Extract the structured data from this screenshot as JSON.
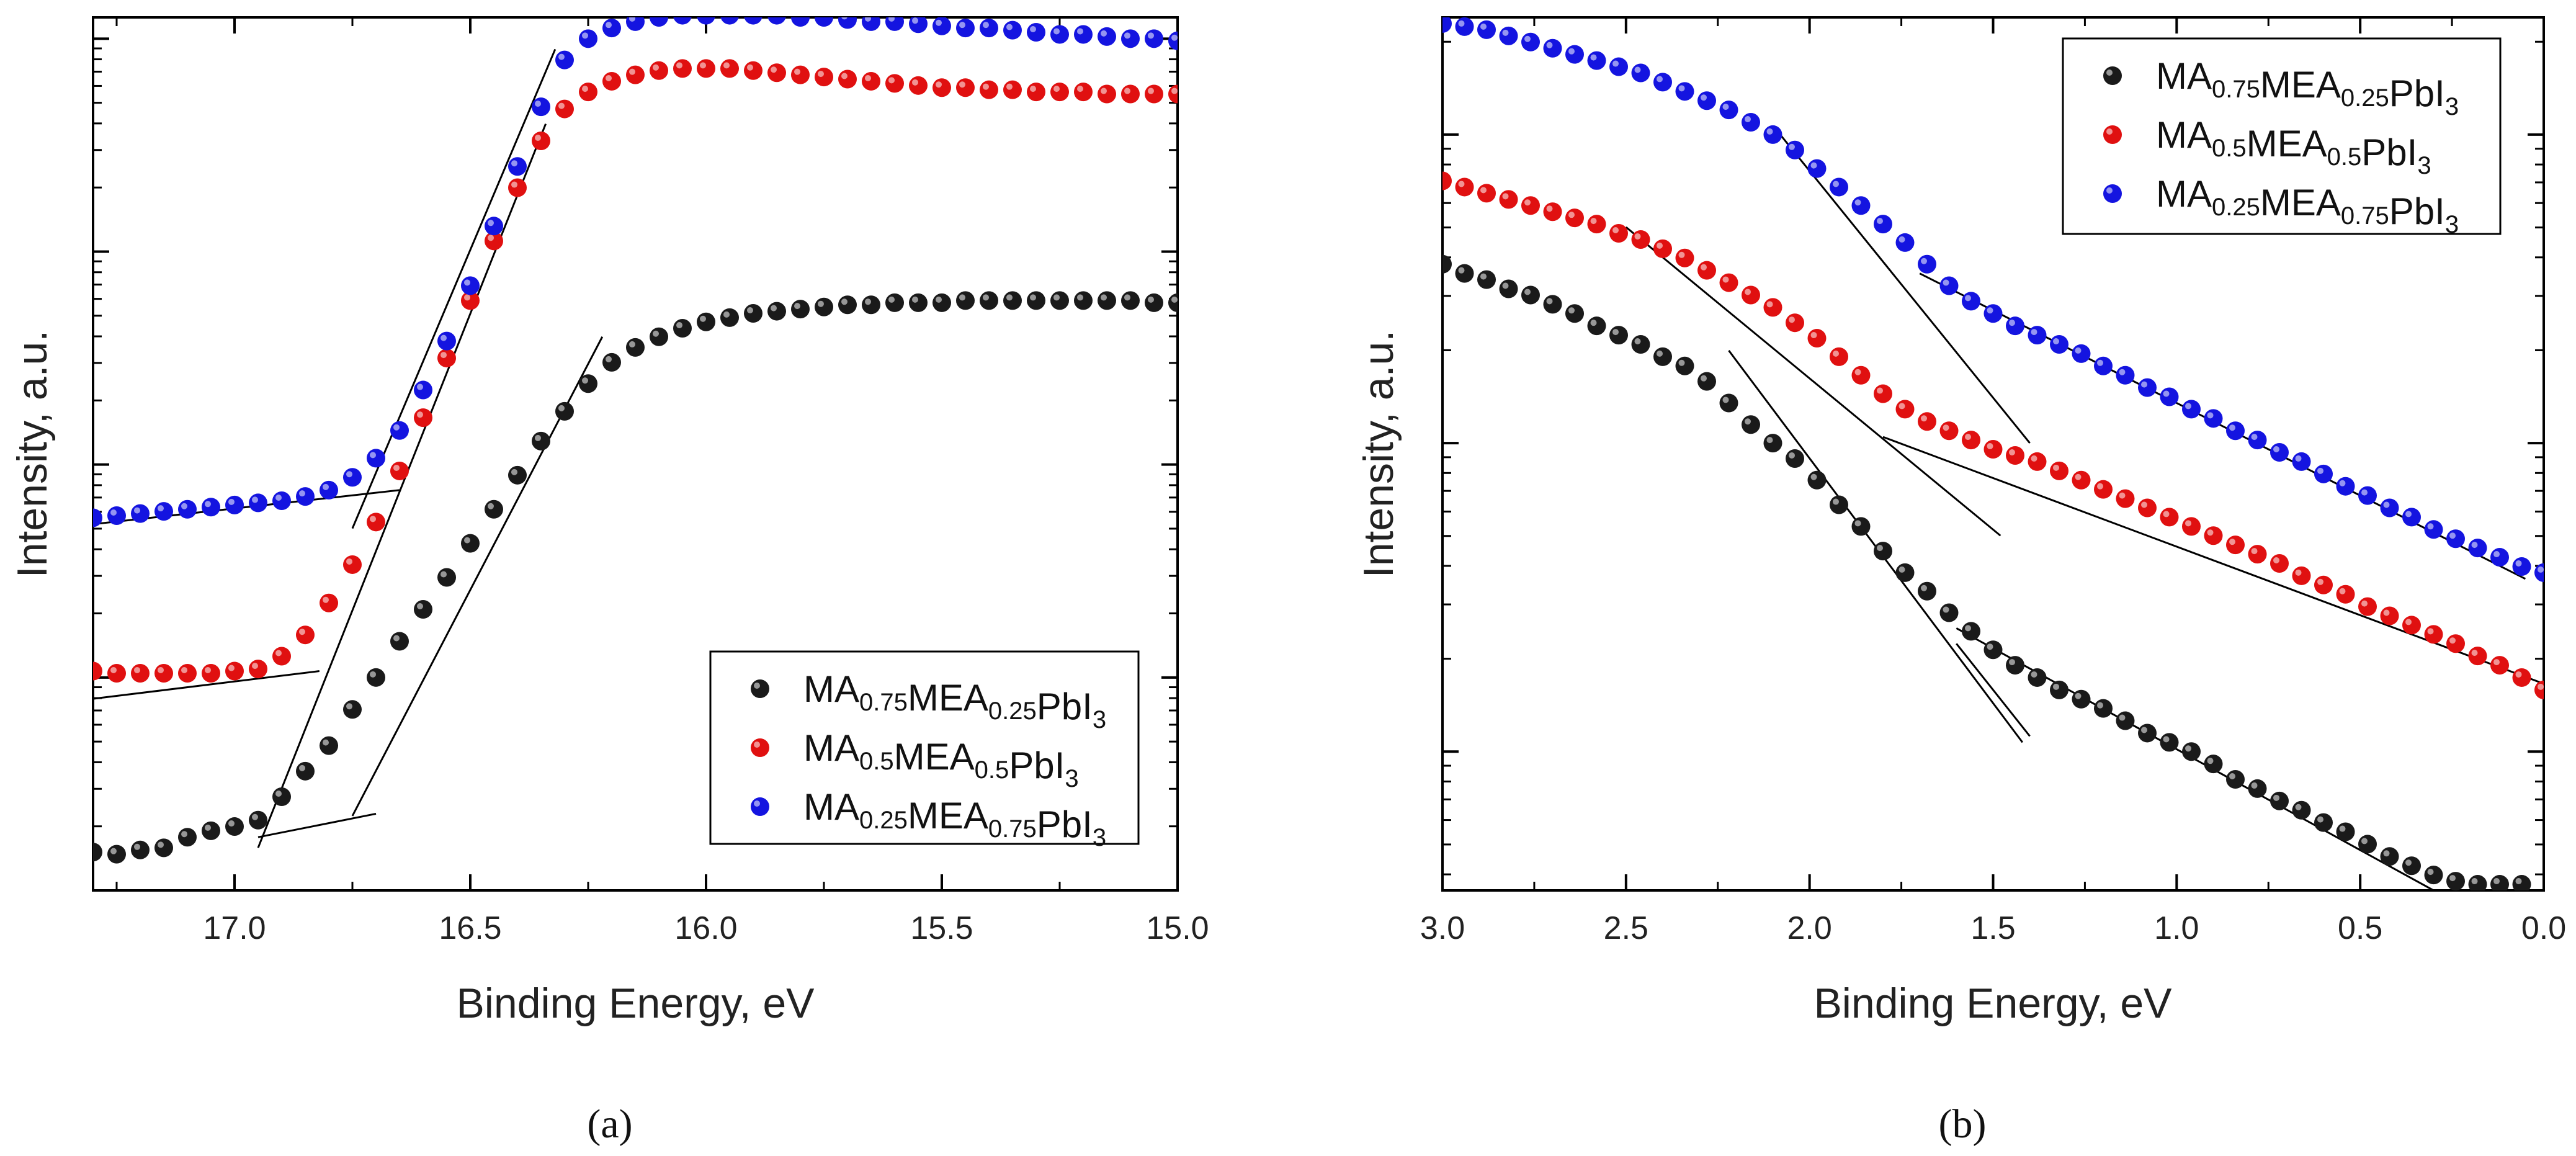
{
  "chart_data": [
    {
      "type": "scatter",
      "panel": "a",
      "panel_label": "(a)",
      "xlabel": "Binding Energy, eV",
      "ylabel": "Intensity, a.u.",
      "xlim": [
        17.3,
        15.0
      ],
      "x_ticks": [
        "17.0",
        "16.5",
        "16.0",
        "15.5",
        "15.0"
      ],
      "x_tick_values": [
        17.0,
        16.5,
        16.0,
        15.5,
        15.0
      ],
      "yscale": "log",
      "y_unit_note": "relative log intensity, decades (major ticks unlabeled)",
      "ylim": [
        0,
        4.1
      ],
      "y_major_ticks": [
        1,
        2,
        3,
        4
      ],
      "legend_position": "bottom-right",
      "series": [
        {
          "name": "MA0.75MEA0.25PbI3",
          "label_parts": [
            [
              "MA",
              ""
            ],
            [
              "0.75",
              "sub"
            ],
            [
              "MEA",
              ""
            ],
            [
              "0.25",
              "sub"
            ],
            [
              "PbI",
              ""
            ],
            [
              "3",
              "sub"
            ]
          ],
          "color": "#1a1a1a",
          "x": [
            17.3,
            17.25,
            17.2,
            17.15,
            17.1,
            17.05,
            17.0,
            16.95,
            16.9,
            16.85,
            16.8,
            16.75,
            16.7,
            16.65,
            16.6,
            16.55,
            16.5,
            16.45,
            16.4,
            16.35,
            16.3,
            16.25,
            16.2,
            16.15,
            16.1,
            16.05,
            16.0,
            15.95,
            15.9,
            15.85,
            15.8,
            15.75,
            15.7,
            15.65,
            15.6,
            15.55,
            15.5,
            15.45,
            15.4,
            15.35,
            15.3,
            15.25,
            15.2,
            15.15,
            15.1,
            15.05,
            15.0
          ],
          "y": [
            0.18,
            0.17,
            0.19,
            0.2,
            0.25,
            0.28,
            0.3,
            0.33,
            0.44,
            0.56,
            0.68,
            0.85,
            1.0,
            1.17,
            1.32,
            1.47,
            1.63,
            1.79,
            1.95,
            2.11,
            2.25,
            2.38,
            2.48,
            2.55,
            2.6,
            2.64,
            2.67,
            2.69,
            2.71,
            2.72,
            2.73,
            2.74,
            2.75,
            2.75,
            2.76,
            2.76,
            2.76,
            2.77,
            2.77,
            2.77,
            2.77,
            2.77,
            2.77,
            2.77,
            2.77,
            2.76,
            2.76
          ]
        },
        {
          "name": "MA0.5MEA0.5PbI3",
          "label_parts": [
            [
              "MA",
              ""
            ],
            [
              "0.5",
              "sub"
            ],
            [
              "MEA",
              ""
            ],
            [
              "0.5",
              "sub"
            ],
            [
              "PbI",
              ""
            ],
            [
              "3",
              "sub"
            ]
          ],
          "color": "#e01010",
          "x": [
            17.3,
            17.25,
            17.2,
            17.15,
            17.1,
            17.05,
            17.0,
            16.95,
            16.9,
            16.85,
            16.8,
            16.75,
            16.7,
            16.65,
            16.6,
            16.55,
            16.5,
            16.45,
            16.4,
            16.35,
            16.3,
            16.25,
            16.2,
            16.15,
            16.1,
            16.05,
            16.0,
            15.95,
            15.9,
            15.85,
            15.8,
            15.75,
            15.7,
            15.65,
            15.6,
            15.55,
            15.5,
            15.45,
            15.4,
            15.35,
            15.3,
            15.25,
            15.2,
            15.15,
            15.1,
            15.05,
            15.0
          ],
          "y": [
            1.03,
            1.02,
            1.02,
            1.02,
            1.02,
            1.02,
            1.03,
            1.04,
            1.1,
            1.2,
            1.35,
            1.53,
            1.73,
            1.97,
            2.22,
            2.5,
            2.77,
            3.05,
            3.3,
            3.52,
            3.67,
            3.75,
            3.8,
            3.83,
            3.85,
            3.86,
            3.86,
            3.86,
            3.85,
            3.84,
            3.83,
            3.82,
            3.81,
            3.8,
            3.79,
            3.78,
            3.77,
            3.77,
            3.76,
            3.76,
            3.75,
            3.75,
            3.75,
            3.74,
            3.74,
            3.74,
            3.74
          ]
        },
        {
          "name": "MA0.25MEA0.75PbI3",
          "label_parts": [
            [
              "MA",
              ""
            ],
            [
              "0.25",
              "sub"
            ],
            [
              "MEA",
              ""
            ],
            [
              "0.75",
              "sub"
            ],
            [
              "PbI",
              ""
            ],
            [
              "3",
              "sub"
            ]
          ],
          "color": "#1414e0",
          "x": [
            17.3,
            17.25,
            17.2,
            17.15,
            17.1,
            17.05,
            17.0,
            16.95,
            16.9,
            16.85,
            16.8,
            16.75,
            16.7,
            16.65,
            16.6,
            16.55,
            16.5,
            16.45,
            16.4,
            16.35,
            16.3,
            16.25,
            16.2,
            16.15,
            16.1,
            16.05,
            16.0,
            15.95,
            15.9,
            15.85,
            15.8,
            15.75,
            15.7,
            15.65,
            15.6,
            15.55,
            15.5,
            15.45,
            15.4,
            15.35,
            15.3,
            15.25,
            15.2,
            15.15,
            15.1,
            15.05,
            15.0
          ],
          "y": [
            1.75,
            1.76,
            1.77,
            1.78,
            1.79,
            1.8,
            1.81,
            1.82,
            1.83,
            1.85,
            1.88,
            1.94,
            2.03,
            2.16,
            2.35,
            2.58,
            2.84,
            3.12,
            3.4,
            3.68,
            3.9,
            4.0,
            4.05,
            4.08,
            4.1,
            4.11,
            4.11,
            4.11,
            4.11,
            4.11,
            4.1,
            4.1,
            4.09,
            4.08,
            4.08,
            4.07,
            4.06,
            4.05,
            4.05,
            4.04,
            4.03,
            4.02,
            4.02,
            4.01,
            4.0,
            4.0,
            3.99
          ]
        }
      ],
      "fit_lines": [
        {
          "x": [
            17.3,
            16.82
          ],
          "y": [
            0.9,
            1.03
          ]
        },
        {
          "x": [
            16.95,
            16.34
          ],
          "y": [
            0.2,
            3.6
          ]
        },
        {
          "x": [
            17.3,
            16.65
          ],
          "y": [
            1.72,
            1.88
          ]
        },
        {
          "x": [
            16.75,
            16.32
          ],
          "y": [
            1.7,
            3.95
          ]
        },
        {
          "x": [
            16.95,
            16.7
          ],
          "y": [
            0.25,
            0.36
          ]
        },
        {
          "x": [
            16.75,
            16.22
          ],
          "y": [
            0.35,
            2.6
          ]
        }
      ]
    },
    {
      "type": "scatter",
      "panel": "b",
      "panel_label": "(b)",
      "xlabel": "Binding Energy, eV",
      "ylabel": "Intensity, a.u.",
      "xlim": [
        3.0,
        0.0
      ],
      "x_ticks": [
        "3.0",
        "2.5",
        "2.0",
        "1.5",
        "1.0",
        "0.5",
        "0.0"
      ],
      "x_tick_values": [
        3.0,
        2.5,
        2.0,
        1.5,
        1.0,
        0.5,
        0.0
      ],
      "yscale": "log",
      "y_unit_note": "relative log intensity, decades (major ticks unlabeled)",
      "ylim": [
        -0.45,
        2.38
      ],
      "y_major_ticks": [
        0,
        1,
        2
      ],
      "legend_position": "top-right",
      "series": [
        {
          "name": "MA0.75MEA0.25PbI3",
          "label_parts": [
            [
              "MA",
              ""
            ],
            [
              "0.75",
              "sub"
            ],
            [
              "MEA",
              ""
            ],
            [
              "0.25",
              "sub"
            ],
            [
              "PbI",
              ""
            ],
            [
              "3",
              "sub"
            ]
          ],
          "color": "#1a1a1a",
          "x": [
            3.0,
            2.94,
            2.88,
            2.82,
            2.76,
            2.7,
            2.64,
            2.58,
            2.52,
            2.46,
            2.4,
            2.34,
            2.28,
            2.22,
            2.16,
            2.1,
            2.04,
            1.98,
            1.92,
            1.86,
            1.8,
            1.74,
            1.68,
            1.62,
            1.56,
            1.5,
            1.44,
            1.38,
            1.32,
            1.26,
            1.2,
            1.14,
            1.08,
            1.02,
            0.96,
            0.9,
            0.84,
            0.78,
            0.72,
            0.66,
            0.6,
            0.54,
            0.48,
            0.42,
            0.36,
            0.3,
            0.24,
            0.18,
            0.12,
            0.06
          ],
          "y": [
            1.58,
            1.55,
            1.53,
            1.5,
            1.48,
            1.45,
            1.42,
            1.38,
            1.35,
            1.32,
            1.28,
            1.25,
            1.2,
            1.13,
            1.06,
            1.0,
            0.95,
            0.88,
            0.8,
            0.73,
            0.65,
            0.58,
            0.52,
            0.45,
            0.39,
            0.33,
            0.28,
            0.24,
            0.2,
            0.17,
            0.14,
            0.1,
            0.06,
            0.03,
            0.0,
            -0.04,
            -0.09,
            -0.12,
            -0.16,
            -0.19,
            -0.23,
            -0.26,
            -0.3,
            -0.34,
            -0.37,
            -0.4,
            -0.42,
            -0.43,
            -0.43,
            -0.43
          ]
        },
        {
          "name": "MA0.5MEA0.5PbI3",
          "label_parts": [
            [
              "MA",
              ""
            ],
            [
              "0.5",
              "sub"
            ],
            [
              "MEA",
              ""
            ],
            [
              "0.5",
              "sub"
            ],
            [
              "PbI",
              ""
            ],
            [
              "3",
              "sub"
            ]
          ],
          "color": "#e01010",
          "x": [
            3.0,
            2.94,
            2.88,
            2.82,
            2.76,
            2.7,
            2.64,
            2.58,
            2.52,
            2.46,
            2.4,
            2.34,
            2.28,
            2.22,
            2.16,
            2.1,
            2.04,
            1.98,
            1.92,
            1.86,
            1.8,
            1.74,
            1.68,
            1.62,
            1.56,
            1.5,
            1.44,
            1.38,
            1.32,
            1.26,
            1.2,
            1.14,
            1.08,
            1.02,
            0.96,
            0.9,
            0.84,
            0.78,
            0.72,
            0.66,
            0.6,
            0.54,
            0.48,
            0.42,
            0.36,
            0.3,
            0.24,
            0.18,
            0.12,
            0.06,
            0.0
          ],
          "y": [
            1.85,
            1.83,
            1.81,
            1.79,
            1.77,
            1.75,
            1.73,
            1.71,
            1.68,
            1.66,
            1.63,
            1.6,
            1.56,
            1.52,
            1.48,
            1.44,
            1.39,
            1.34,
            1.28,
            1.22,
            1.16,
            1.11,
            1.07,
            1.04,
            1.01,
            0.98,
            0.96,
            0.94,
            0.91,
            0.88,
            0.85,
            0.82,
            0.79,
            0.76,
            0.73,
            0.7,
            0.67,
            0.64,
            0.61,
            0.57,
            0.54,
            0.51,
            0.47,
            0.44,
            0.41,
            0.38,
            0.35,
            0.31,
            0.28,
            0.24,
            0.2
          ]
        },
        {
          "name": "MA0.25MEA0.75PbI3",
          "label_parts": [
            [
              "MA",
              ""
            ],
            [
              "0.25",
              "sub"
            ],
            [
              "MEA",
              ""
            ],
            [
              "0.75",
              "sub"
            ],
            [
              "PbI",
              ""
            ],
            [
              "3",
              "sub"
            ]
          ],
          "color": "#1414e0",
          "x": [
            3.0,
            2.94,
            2.88,
            2.82,
            2.76,
            2.7,
            2.64,
            2.58,
            2.52,
            2.46,
            2.4,
            2.34,
            2.28,
            2.22,
            2.16,
            2.1,
            2.04,
            1.98,
            1.92,
            1.86,
            1.8,
            1.74,
            1.68,
            1.62,
            1.56,
            1.5,
            1.44,
            1.38,
            1.32,
            1.26,
            1.2,
            1.14,
            1.08,
            1.02,
            0.96,
            0.9,
            0.84,
            0.78,
            0.72,
            0.66,
            0.6,
            0.54,
            0.48,
            0.42,
            0.36,
            0.3,
            0.24,
            0.18,
            0.12,
            0.06,
            0.0
          ],
          "y": [
            2.36,
            2.35,
            2.34,
            2.32,
            2.3,
            2.28,
            2.26,
            2.24,
            2.22,
            2.2,
            2.17,
            2.14,
            2.11,
            2.08,
            2.04,
            2.0,
            1.95,
            1.89,
            1.83,
            1.77,
            1.71,
            1.65,
            1.58,
            1.51,
            1.46,
            1.42,
            1.38,
            1.35,
            1.32,
            1.29,
            1.25,
            1.22,
            1.18,
            1.15,
            1.11,
            1.08,
            1.04,
            1.01,
            0.97,
            0.94,
            0.9,
            0.86,
            0.83,
            0.79,
            0.76,
            0.72,
            0.69,
            0.66,
            0.63,
            0.6,
            0.58
          ]
        }
      ],
      "fit_lines": [
        {
          "x": [
            2.22,
            1.42
          ],
          "y": [
            1.3,
            0.03
          ]
        },
        {
          "x": [
            1.6,
            1.4
          ],
          "y": [
            0.35,
            0.05
          ]
        },
        {
          "x": [
            1.6,
            0.3
          ],
          "y": [
            0.4,
            -0.45
          ]
        },
        {
          "x": [
            2.5,
            1.48
          ],
          "y": [
            1.7,
            0.7
          ]
        },
        {
          "x": [
            1.8,
            0.0
          ],
          "y": [
            1.02,
            0.22
          ]
        },
        {
          "x": [
            2.08,
            1.4
          ],
          "y": [
            2.0,
            1.0
          ]
        },
        {
          "x": [
            1.7,
            0.05
          ],
          "y": [
            1.55,
            0.56
          ]
        }
      ]
    }
  ]
}
